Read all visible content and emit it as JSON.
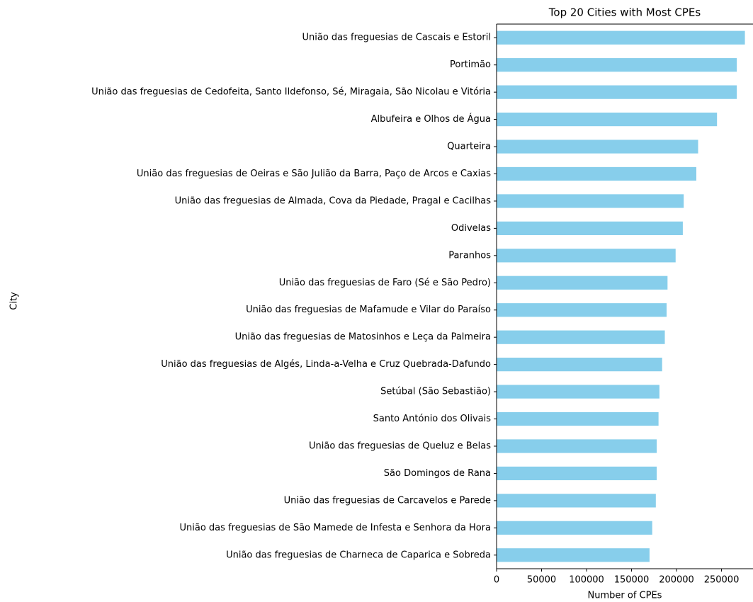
{
  "chart_data": {
    "type": "bar",
    "orientation": "horizontal",
    "title": "Top 20 Cities with Most CPEs",
    "x_label": "Number of CPEs",
    "y_label": "City",
    "color": "#87ceeb",
    "categories": [
      "União das freguesias de Cascais e Estoril",
      "Portimão",
      "União das freguesias de Cedofeita, Santo Ildefonso, Sé, Miragaia, São Nicolau e Vitória",
      "Albufeira e Olhos de Água",
      "Quarteira",
      "União das freguesias de Oeiras e São Julião da Barra, Paço de Arcos e Caxias",
      "União das freguesias de Almada, Cova da Piedade, Pragal e Cacilhas",
      "Odivelas",
      "Paranhos",
      "União das freguesias de Faro (Sé e São Pedro)",
      "União das freguesias de Mafamude e Vilar do Paraíso",
      "União das freguesias de Matosinhos e Leça da Palmeira",
      "União das freguesias de Algés, Linda-a-Velha e Cruz Quebrada-Dafundo",
      "Setúbal (São Sebastião)",
      "Santo António dos Olivais",
      "União das freguesias de Queluz e Belas",
      "São Domingos de Rana",
      "União das freguesias de Carcavelos e Parede",
      "União das freguesias de São Mamede de Infesta e Senhora da Hora",
      "União das freguesias de Charneca de Caparica e Sobreda"
    ],
    "values": [
      276000,
      267000,
      267000,
      245000,
      224000,
      222000,
      208000,
      207000,
      199000,
      190000,
      189000,
      187000,
      184000,
      181000,
      180000,
      178000,
      178000,
      177000,
      173000,
      170000
    ],
    "xlim": [
      0,
      285000
    ],
    "xticks": [
      0,
      50000,
      100000,
      150000,
      200000,
      250000
    ]
  }
}
